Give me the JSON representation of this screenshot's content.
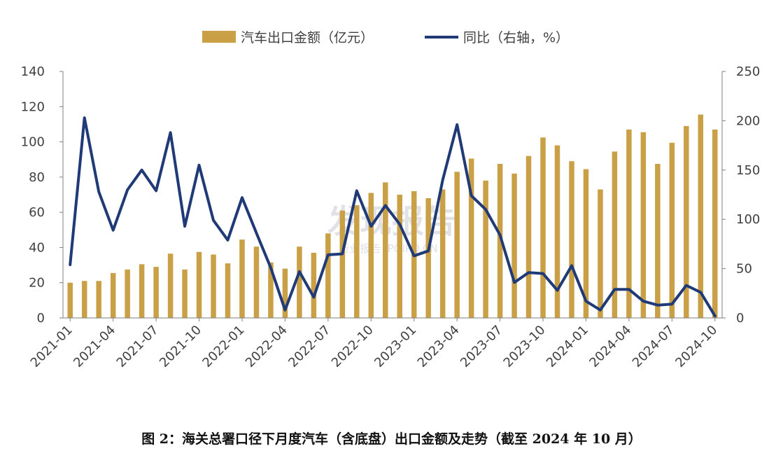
{
  "caption": "图 2：海关总署口径下月度汽车（含底盘）出口金额及走势（截至 2024 年 10 月）",
  "watermark": {
    "main": "发现报告",
    "sub": "行业报告 IPOIPO.CN"
  },
  "chart_data": {
    "type": "bar+line",
    "legend_position": "top-center",
    "grid": false,
    "categories": [
      "2021-01",
      "2021-02",
      "2021-03",
      "2021-04",
      "2021-05",
      "2021-06",
      "2021-07",
      "2021-08",
      "2021-09",
      "2021-10",
      "2021-11",
      "2021-12",
      "2022-01",
      "2022-02",
      "2022-03",
      "2022-04",
      "2022-05",
      "2022-06",
      "2022-07",
      "2022-08",
      "2022-09",
      "2022-10",
      "2022-11",
      "2022-12",
      "2023-01",
      "2023-02",
      "2023-03",
      "2023-04",
      "2023-05",
      "2023-06",
      "2023-07",
      "2023-08",
      "2023-09",
      "2023-10",
      "2023-11",
      "2023-12",
      "2024-01",
      "2024-02",
      "2024-03",
      "2024-04",
      "2024-05",
      "2024-06",
      "2024-07",
      "2024-08",
      "2024-09",
      "2024-10"
    ],
    "x_tick_labels": [
      "2021-01",
      "2021-04",
      "2021-07",
      "2021-10",
      "2022-01",
      "2022-04",
      "2022-07",
      "2022-10",
      "2023-01",
      "2023-04",
      "2023-07",
      "2023-10",
      "2024-01",
      "2024-04",
      "2024-07",
      "2024-10"
    ],
    "left_axis": {
      "ylim": [
        0,
        140
      ],
      "ticks": [
        0,
        20,
        40,
        60,
        80,
        100,
        120,
        140
      ]
    },
    "right_axis": {
      "ylim": [
        0,
        250
      ],
      "ticks": [
        0,
        50,
        100,
        150,
        200,
        250
      ]
    },
    "series": [
      {
        "name": "汽车出口金额（亿元）",
        "kind": "bar",
        "axis": "left",
        "color": "#C9A046",
        "values": [
          20,
          21,
          21,
          25.5,
          27.5,
          30.5,
          29,
          36.5,
          27.5,
          37.5,
          36,
          31,
          44.5,
          40.5,
          31.5,
          28,
          40.5,
          37,
          48,
          61,
          64,
          71,
          77,
          70,
          72,
          68,
          73,
          83,
          90.5,
          78,
          87.5,
          82,
          92,
          102.5,
          98,
          89,
          84.5,
          73,
          94.5,
          107,
          105.5,
          87.5,
          99.5,
          109,
          115.5,
          107
        ]
      },
      {
        "name": "同比（右轴，%）",
        "kind": "line",
        "axis": "right",
        "color": "#1F3A76",
        "values": [
          54,
          203,
          128,
          89,
          130,
          150,
          129,
          188,
          93,
          155,
          99,
          79,
          122,
          86,
          51,
          8,
          47,
          21,
          64,
          65,
          129,
          93,
          114,
          95,
          63,
          68,
          140,
          196,
          124,
          110,
          84,
          36,
          46,
          45,
          28,
          53,
          17,
          8,
          29,
          29,
          17,
          13,
          14,
          33,
          26,
          2
        ]
      }
    ]
  }
}
